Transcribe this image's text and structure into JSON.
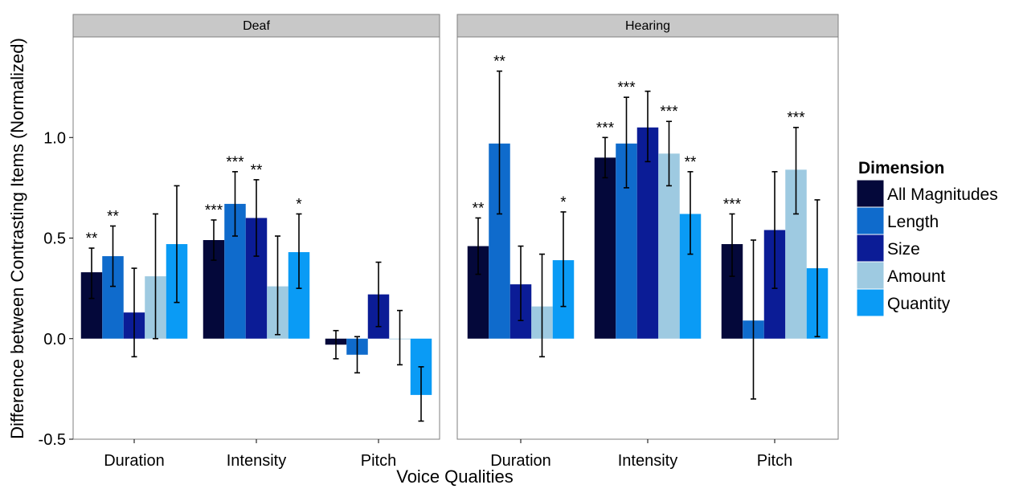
{
  "chart_data": {
    "type": "bar",
    "xlabel": "Voice Qualities",
    "ylabel": "Difference between Contrasting Items (Normalized)",
    "ylim": [
      -0.5,
      1.5
    ],
    "yticks": [
      "-0.5",
      "0.0",
      "0.5",
      "1.0"
    ],
    "categories": [
      "Duration",
      "Intensity",
      "Pitch"
    ],
    "legend": {
      "title": "Dimension",
      "entries": [
        "All Magnitudes",
        "Length",
        "Size",
        "Amount",
        "Quantity"
      ],
      "colors": [
        "#04083a",
        "#0f6bcc",
        "#0b1c96",
        "#9ecae1",
        "#0a9bf5"
      ],
      "position": "right"
    },
    "panels": [
      {
        "label": "Deaf",
        "series": [
          {
            "name": "All Magnitudes",
            "values": [
              0.33,
              0.49,
              -0.03
            ],
            "lower": [
              0.2,
              0.39,
              -0.1
            ],
            "upper": [
              0.45,
              0.59,
              0.04
            ],
            "sig": [
              "**",
              "***",
              ""
            ]
          },
          {
            "name": "Length",
            "values": [
              0.41,
              0.67,
              -0.08
            ],
            "lower": [
              0.26,
              0.51,
              -0.17
            ],
            "upper": [
              0.56,
              0.83,
              0.01
            ],
            "sig": [
              "**",
              "***",
              ""
            ]
          },
          {
            "name": "Size",
            "values": [
              0.13,
              0.6,
              0.22
            ],
            "lower": [
              -0.09,
              0.41,
              0.06
            ],
            "upper": [
              0.35,
              0.79,
              0.38
            ],
            "sig": [
              "",
              "**",
              ""
            ]
          },
          {
            "name": "Amount",
            "values": [
              0.31,
              0.26,
              0.0
            ],
            "lower": [
              0.0,
              0.02,
              -0.13
            ],
            "upper": [
              0.62,
              0.51,
              0.14
            ],
            "sig": [
              "",
              "",
              ""
            ]
          },
          {
            "name": "Quantity",
            "values": [
              0.47,
              0.43,
              -0.28
            ],
            "lower": [
              0.18,
              0.25,
              -0.41
            ],
            "upper": [
              0.76,
              0.62,
              -0.14
            ],
            "sig": [
              "",
              "*",
              ""
            ]
          }
        ]
      },
      {
        "label": "Hearing",
        "series": [
          {
            "name": "All Magnitudes",
            "values": [
              0.46,
              0.9,
              0.47
            ],
            "lower": [
              0.32,
              0.8,
              0.31
            ],
            "upper": [
              0.6,
              1.0,
              0.62
            ],
            "sig": [
              "**",
              "***",
              "***"
            ]
          },
          {
            "name": "Length",
            "values": [
              0.97,
              0.97,
              0.09
            ],
            "lower": [
              0.62,
              0.75,
              -0.3
            ],
            "upper": [
              1.33,
              1.2,
              0.49
            ],
            "sig": [
              "**",
              "***",
              ""
            ]
          },
          {
            "name": "Size",
            "values": [
              0.27,
              1.05,
              0.54
            ],
            "lower": [
              0.09,
              0.88,
              0.25
            ],
            "upper": [
              0.46,
              1.23,
              0.83
            ],
            "sig": [
              "",
              "",
              ""
            ]
          },
          {
            "name": "Amount",
            "values": [
              0.16,
              0.92,
              0.84
            ],
            "lower": [
              -0.09,
              0.76,
              0.62
            ],
            "upper": [
              0.42,
              1.08,
              1.05
            ],
            "sig": [
              "",
              "***",
              "***"
            ]
          },
          {
            "name": "Quantity",
            "values": [
              0.39,
              0.62,
              0.35
            ],
            "lower": [
              0.16,
              0.42,
              0.01
            ],
            "upper": [
              0.63,
              0.83,
              0.69
            ],
            "sig": [
              "*",
              "**",
              ""
            ]
          }
        ]
      }
    ]
  }
}
